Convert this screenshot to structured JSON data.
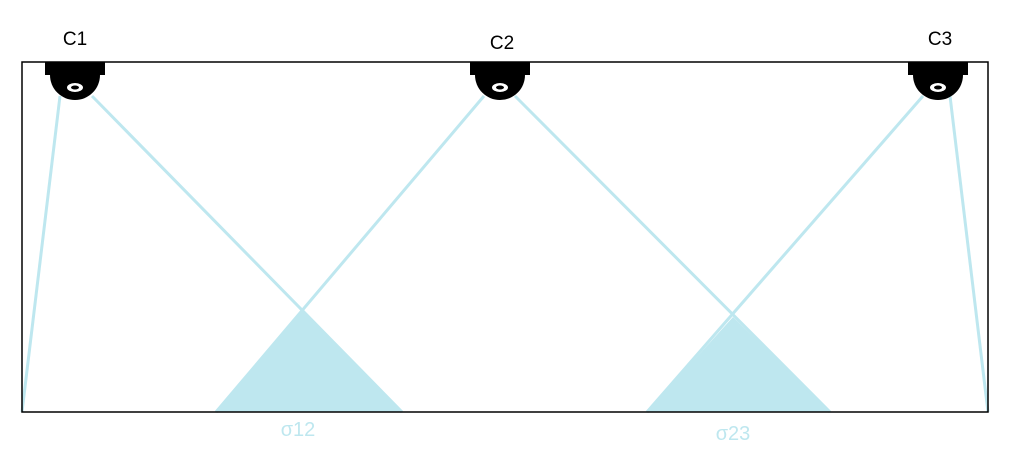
{
  "colors": {
    "coverage": "#bee7ef",
    "camera": "#000000",
    "room_outline": "#000000",
    "overlap_label": "#bee7ef"
  },
  "cameras": [
    {
      "label": "C1",
      "icon": "dome-camera-icon"
    },
    {
      "label": "C2",
      "icon": "dome-camera-icon"
    },
    {
      "label": "C3",
      "icon": "dome-camera-icon"
    }
  ],
  "overlaps": [
    {
      "label": "σ12"
    },
    {
      "label": "σ23"
    }
  ]
}
